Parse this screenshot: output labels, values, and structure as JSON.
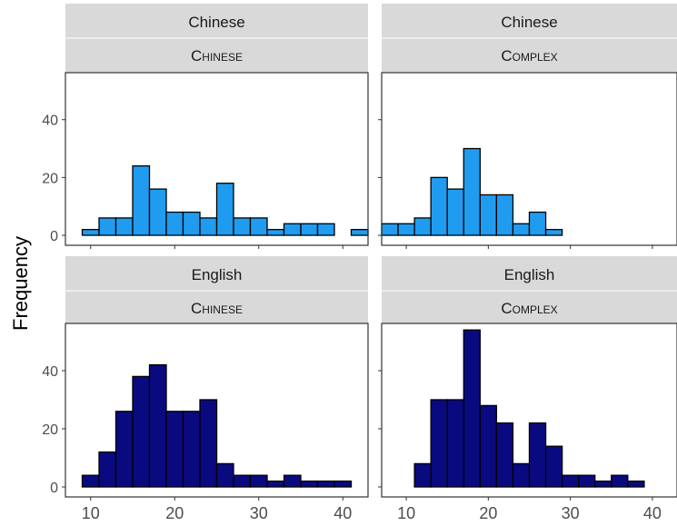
{
  "chart_data": {
    "type": "bar",
    "ylabel": "Frequency",
    "xlabel": "",
    "xlim": [
      7,
      43
    ],
    "ylim": [
      0,
      55
    ],
    "xticks": [
      10,
      20,
      30,
      40
    ],
    "yticks": [
      0,
      20,
      40
    ],
    "bin_width": 2,
    "bins_start": 7,
    "colors": {
      "Chinese": "#1f9cf0",
      "English": "#0a0a80",
      "strip": "#d9d9d9"
    },
    "panels": [
      {
        "strip_top": "Chinese",
        "strip_bottom": "Chinese",
        "values": [
          0,
          2,
          6,
          6,
          24,
          16,
          8,
          8,
          6,
          18,
          6,
          6,
          2,
          4,
          4,
          4,
          0,
          2
        ]
      },
      {
        "strip_top": "Chinese",
        "strip_bottom": "Complex",
        "values": [
          4,
          4,
          6,
          20,
          16,
          30,
          14,
          14,
          4,
          8,
          2,
          0,
          0,
          0,
          0,
          0,
          0,
          0
        ]
      },
      {
        "strip_top": "English",
        "strip_bottom": "Chinese",
        "values": [
          0,
          4,
          12,
          26,
          38,
          42,
          26,
          26,
          30,
          8,
          4,
          4,
          2,
          4,
          2,
          2,
          2,
          0
        ]
      },
      {
        "strip_top": "English",
        "strip_bottom": "Complex",
        "values": [
          0,
          0,
          8,
          30,
          30,
          54,
          28,
          22,
          8,
          22,
          14,
          4,
          4,
          2,
          4,
          2,
          0,
          0
        ]
      }
    ]
  }
}
